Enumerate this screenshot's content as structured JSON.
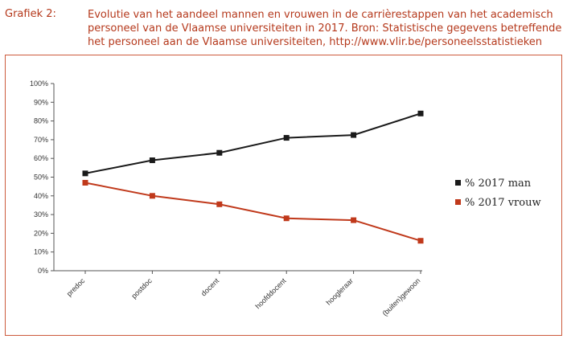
{
  "caption": {
    "label": "Grafiek 2:",
    "lines": [
      "Evolutie van het aandeel mannen en vrouwen in de carrièrestappen van het academisch",
      "personeel van de Vlaamse universiteiten in 2017. Bron: Statistische gegevens betreffende",
      "het personeel aan de Vlaamse universiteiten, http://www.vlir.be/personeelsstatistieken"
    ]
  },
  "colors": {
    "accent": "#b5391c",
    "man": "#1a1a1a",
    "vrouw": "#c0391b",
    "frame": "#cc5a3c"
  },
  "chart_data": {
    "type": "line",
    "categories": [
      "predoc",
      "postdoc",
      "docent",
      "hoofddocent",
      "hoogleraar",
      "(buiten)gewoon"
    ],
    "series": [
      {
        "name": "% 2017 man",
        "values": [
          52,
          59,
          63,
          71,
          72.5,
          84
        ]
      },
      {
        "name": "% 2017 vrouw",
        "values": [
          47,
          40,
          35.5,
          28,
          27,
          16
        ]
      }
    ],
    "ylim": [
      0,
      100
    ],
    "yticks": [
      "0%",
      "10%",
      "20%",
      "30%",
      "40%",
      "50%",
      "60%",
      "70%",
      "80%",
      "90%",
      "100%"
    ],
    "grid": false,
    "legend": "right",
    "marker": "square"
  }
}
